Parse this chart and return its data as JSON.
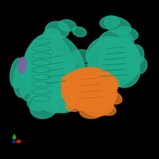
{
  "background_color": "#000000",
  "teal_color": "#1fac8a",
  "teal_dark": "#0d7a5f",
  "teal_light": "#2dc99e",
  "orange_color": "#e87722",
  "orange_dark": "#b85a10",
  "purple_color": "#8060a0",
  "axis_x_color": "#cc2200",
  "axis_y_color": "#22aa22",
  "axis_z_color": "#2222cc",
  "figsize": [
    2.0,
    2.0
  ],
  "dpi": 100
}
